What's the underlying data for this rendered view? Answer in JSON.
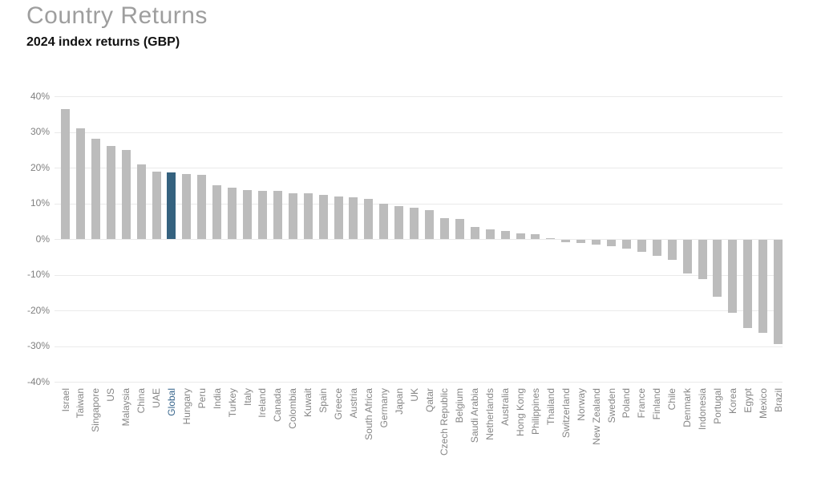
{
  "header": {
    "title": "Country Returns",
    "subtitle": "2024 index returns (GBP)"
  },
  "chart_data": {
    "type": "bar",
    "title": "Country Returns",
    "subtitle": "2024 index returns (GBP)",
    "xlabel": "",
    "ylabel": "",
    "ylim": [
      -40,
      40
    ],
    "grid": "horizontal gridlines only",
    "legend_position": "none",
    "ytick_values": [
      40,
      30,
      20,
      10,
      0,
      -10,
      -20,
      -30,
      -40
    ],
    "ytick_labels": [
      "40%",
      "30%",
      "20%",
      "10%",
      "0%",
      "-10%",
      "-20%",
      "-30%",
      "-40%"
    ],
    "highlight_category": "Global",
    "categories": [
      "Israel",
      "Taiwan",
      "Singapore",
      "US",
      "Malaysia",
      "China",
      "UAE",
      "Global",
      "Hungary",
      "Peru",
      "India",
      "Turkey",
      "Italy",
      "Ireland",
      "Canada",
      "Colombia",
      "Kuwait",
      "Spain",
      "Greece",
      "Austria",
      "South Africa",
      "Germany",
      "Japan",
      "UK",
      "Qatar",
      "Czech Republic",
      "Belgium",
      "Saudi Arabia",
      "Netherlands",
      "Australia",
      "Hong Kong",
      "Philippines",
      "Thailand",
      "Switzerland",
      "Norway",
      "New Zealand",
      "Sweden",
      "Poland",
      "France",
      "Finland",
      "Chile",
      "Denmark",
      "Indonesia",
      "Portugal",
      "Korea",
      "Egypt",
      "Mexico",
      "Brazil"
    ],
    "values": [
      36.5,
      31,
      28.2,
      26,
      25,
      21,
      18.8,
      18.6,
      18.2,
      17.9,
      15.1,
      14.4,
      13.8,
      13.6,
      13.5,
      12.9,
      12.8,
      12.3,
      11.9,
      11.7,
      11.3,
      9.8,
      9.2,
      8.7,
      8,
      5.9,
      5.6,
      3.3,
      2.6,
      2.2,
      1.5,
      1.3,
      0.2,
      -0.6,
      -0.9,
      -1.3,
      -1.8,
      -2.4,
      -3.3,
      -4.4,
      -5.6,
      -9.5,
      -11,
      -15.9,
      -20.5,
      -24.7,
      -26,
      -29.3
    ],
    "colors": {
      "bar": "#bcbcbc",
      "highlight_bar": "#35627f",
      "gridline": "#eaeaea",
      "ytick_label": "#7f7f7f",
      "xtick_label": "#868686",
      "highlight_xtick_label": "#36648b",
      "title": "#9e9e9e",
      "subtitle": "#111111"
    }
  }
}
